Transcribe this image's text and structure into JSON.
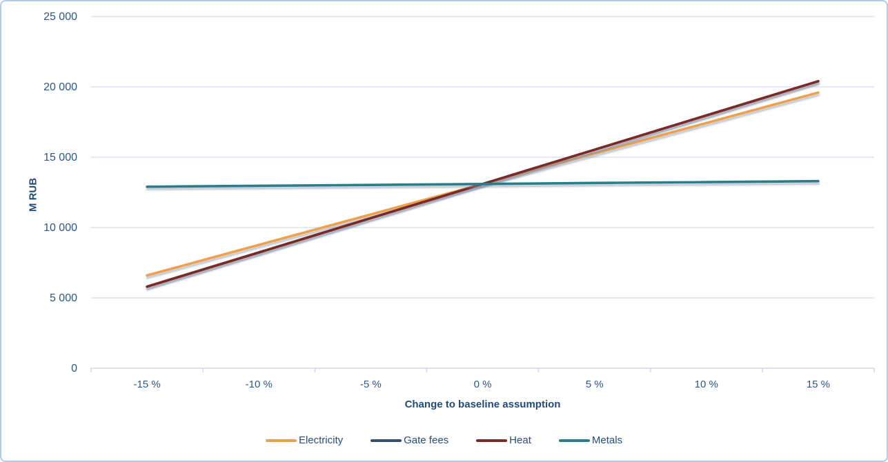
{
  "colors": {
    "electricity": "#eea14c",
    "gate_fees": "#30506f",
    "heat": "#7d2b26",
    "metals": "#2a7e8c",
    "tick_text": "#2e5586",
    "title_text": "#234b77",
    "gridline": "#dbe3f1",
    "axis_line": "#d2d9e2",
    "frame_border": "#aecbe8"
  },
  "chart_data": {
    "type": "line",
    "title": "",
    "xlabel": "Change to baseline assumption",
    "ylabel": "M RUB",
    "categories": [
      "-15 %",
      "-10 %",
      "-5 %",
      "0 %",
      "5 %",
      "10 %",
      "15 %"
    ],
    "x_values_percent": [
      -15,
      -10,
      -5,
      0,
      5,
      10,
      15
    ],
    "series": [
      {
        "name": "Electricity",
        "color": "#eea14c",
        "values": [
          6600,
          8770,
          10930,
          13100,
          15270,
          17430,
          19600
        ]
      },
      {
        "name": "Gate fees",
        "color": "#30506f",
        "values": [
          5800,
          8230,
          10670,
          13100,
          15530,
          17970,
          20400
        ]
      },
      {
        "name": "Heat",
        "color": "#7d2b26",
        "values": [
          5800,
          8230,
          10670,
          13100,
          15530,
          17970,
          20400
        ]
      },
      {
        "name": "Metals",
        "color": "#2a7e8c",
        "values": [
          12900,
          12970,
          13030,
          13100,
          13170,
          13230,
          13300
        ]
      }
    ],
    "ylim": [
      0,
      25000
    ],
    "y_tick_step": 5000,
    "y_tick_labels": [
      "25 000",
      "20 000",
      "15 000",
      "10 000",
      "5 000",
      "0"
    ],
    "grid": "horizontal",
    "legend_position": "bottom"
  }
}
